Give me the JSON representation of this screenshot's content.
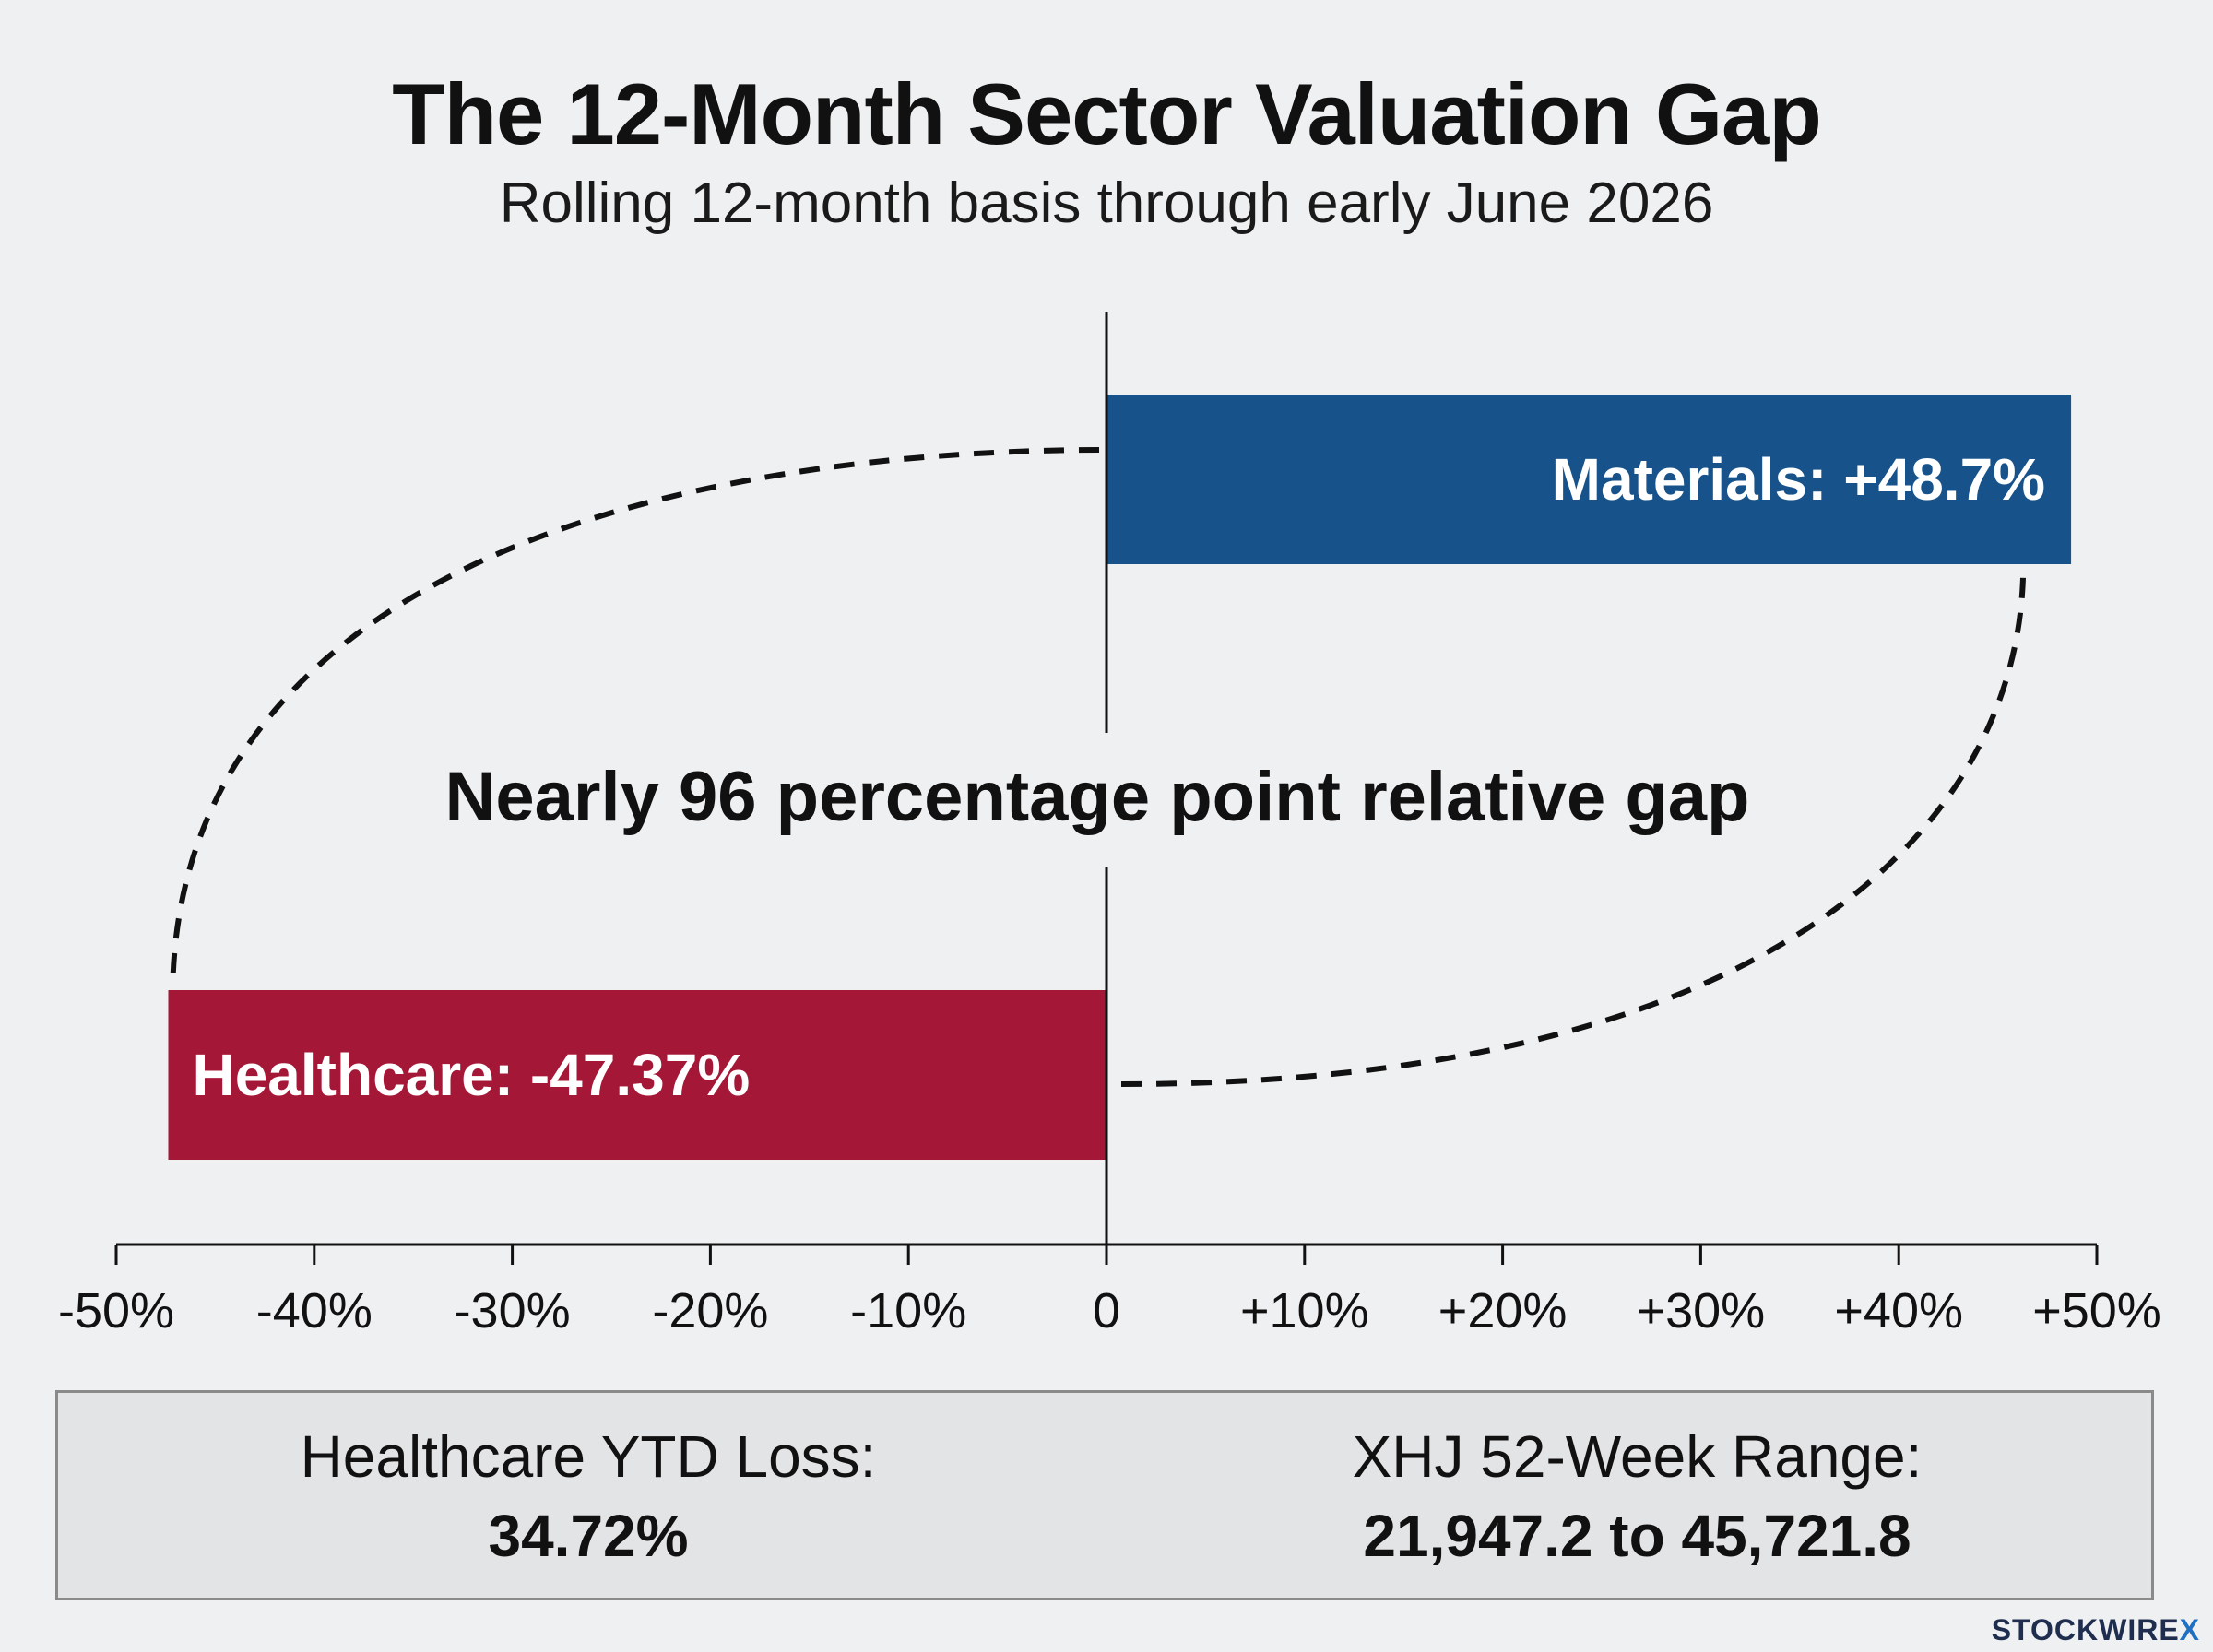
{
  "title": "The 12-Month Sector Valuation Gap",
  "subtitle": "Rolling 12-month basis through early June 2026",
  "chart_data": {
    "type": "bar",
    "orientation": "horizontal",
    "categories": [
      "Materials",
      "Healthcare"
    ],
    "values": [
      48.7,
      -47.37
    ],
    "bar_labels": [
      "Materials: +48.7%",
      "Healthcare: -47.37%"
    ],
    "colors": [
      "#17538a",
      "#a51737"
    ],
    "xlim": [
      -50,
      50
    ],
    "x_ticks": [
      -50,
      -40,
      -30,
      -20,
      -10,
      0,
      10,
      20,
      30,
      40,
      50
    ],
    "x_tick_labels": [
      "-50%",
      "-40%",
      "-30%",
      "-20%",
      "-10%",
      "0",
      "+10%",
      "+20%",
      "+30%",
      "+40%",
      "+50%"
    ],
    "annotation": "Nearly 96 percentage point relative gap",
    "grid": false,
    "legend": "none"
  },
  "stats": {
    "left_label": "Healthcare YTD Loss:",
    "left_value": "34.72%",
    "right_label": "XHJ 52-Week Range:",
    "right_value": "21,947.2 to 45,721.8"
  },
  "brand": {
    "name": "STOCKWIRE",
    "mark": "X",
    "accent": "#1f6fc2"
  }
}
